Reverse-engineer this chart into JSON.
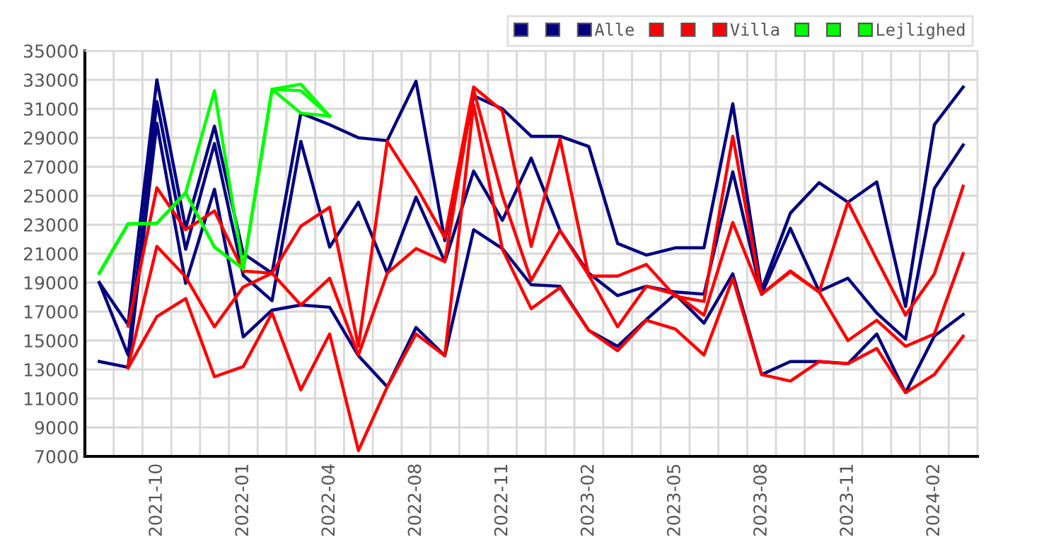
{
  "chart_data": {
    "type": "line",
    "categories": [
      null,
      null,
      "2021-10",
      null,
      null,
      "2022-01",
      null,
      null,
      "2022-04",
      null,
      null,
      "2022-08",
      null,
      null,
      "2022-11",
      null,
      null,
      "2023-02",
      null,
      null,
      "2023-05",
      null,
      null,
      "2023-08",
      null,
      null,
      "2023-11",
      null,
      null,
      "2024-02",
      null
    ],
    "ylim": [
      7000,
      35000
    ],
    "yticks": [
      7000,
      9000,
      11000,
      13000,
      15000,
      17000,
      19000,
      21000,
      23000,
      25000,
      27000,
      29000,
      31000,
      33000,
      35000
    ],
    "grid": true,
    "legend": "top right",
    "marker": "none",
    "line_style": "solid",
    "series": [
      {
        "color": "#000080",
        "values": [
          19000,
          16100,
          33000,
          22750,
          29800,
          21000,
          19650,
          30700,
          29900,
          29000,
          28800,
          32900,
          21900,
          31900,
          31000,
          29100,
          29100,
          28400,
          21700,
          20900,
          21400,
          21400,
          31350,
          18500,
          23800,
          25900,
          24550,
          25950,
          17350,
          29900,
          32500
        ]
      },
      {
        "color": "#000080",
        "values": [
          19000,
          14000,
          31500,
          21300,
          28600,
          19500,
          17750,
          28750,
          21450,
          24550,
          19650,
          24900,
          20450,
          26700,
          23300,
          27600,
          22600,
          19650,
          18100,
          18750,
          18350,
          18200,
          26650,
          18200,
          22750,
          18400,
          19300,
          16900,
          15100,
          25500,
          28500
        ]
      },
      {
        "name": "Alle",
        "color": "#000080",
        "values": [
          13550,
          13150,
          30000,
          18950,
          25450,
          15250,
          17100,
          17450,
          17300,
          13950,
          11800,
          15900,
          13950,
          22650,
          21350,
          18850,
          18750,
          15700,
          14600,
          16450,
          18200,
          16200,
          19600,
          12650,
          13550,
          13550,
          13400,
          15450,
          11400,
          15300,
          16800
        ]
      },
      {
        "color": "#ff0000",
        "values": [
          null,
          16000,
          25550,
          22650,
          23950,
          19800,
          19650,
          22900,
          24200,
          14600,
          28750,
          25650,
          22100,
          32500,
          30850,
          21500,
          28900,
          19450,
          19450,
          20250,
          18050,
          17700,
          29100,
          18200,
          19800,
          18350,
          24550,
          20600,
          16750,
          19600,
          25650
        ]
      },
      {
        "color": "#ff0000",
        "values": [
          null,
          13200,
          21500,
          19400,
          15950,
          18700,
          19650,
          17450,
          19300,
          14000,
          19650,
          21350,
          20450,
          32300,
          25000,
          19150,
          22600,
          19500,
          15950,
          18750,
          18200,
          16750,
          23150,
          18200,
          19750,
          18350,
          15000,
          16400,
          14600,
          15450,
          21000
        ]
      },
      {
        "name": "Villa",
        "color": "#ff0000",
        "values": [
          null,
          13100,
          16650,
          17900,
          12500,
          13200,
          16900,
          11600,
          15450,
          7400,
          11800,
          15450,
          13950,
          31300,
          21300,
          17200,
          18650,
          15700,
          14300,
          16400,
          15800,
          14000,
          19300,
          12650,
          12200,
          13550,
          13400,
          14450,
          11400,
          12650,
          15300
        ]
      },
      {
        "color": "#00ff00",
        "values": [
          19650,
          23050,
          23100,
          25200,
          32250,
          19950,
          32350,
          32700,
          30500,
          null,
          null,
          null,
          null,
          null,
          null,
          null,
          null,
          null,
          null,
          null,
          null,
          null,
          null,
          null,
          null,
          null,
          null,
          null,
          null,
          null,
          null
        ]
      },
      {
        "color": "#00ff00",
        "values": [
          19650,
          23050,
          23100,
          25200,
          21450,
          19950,
          32350,
          32250,
          30500,
          null,
          null,
          null,
          null,
          null,
          null,
          null,
          null,
          null,
          null,
          null,
          null,
          null,
          null,
          null,
          null,
          null,
          null,
          null,
          null,
          null,
          null
        ]
      },
      {
        "name": "Lejlighed",
        "color": "#00ff00",
        "values": [
          19650,
          23050,
          23100,
          25200,
          21450,
          19950,
          32350,
          30700,
          30500,
          null,
          null,
          null,
          null,
          null,
          null,
          null,
          null,
          null,
          null,
          null,
          null,
          null,
          null,
          null,
          null,
          null,
          null,
          null,
          null,
          null,
          null
        ]
      }
    ]
  }
}
